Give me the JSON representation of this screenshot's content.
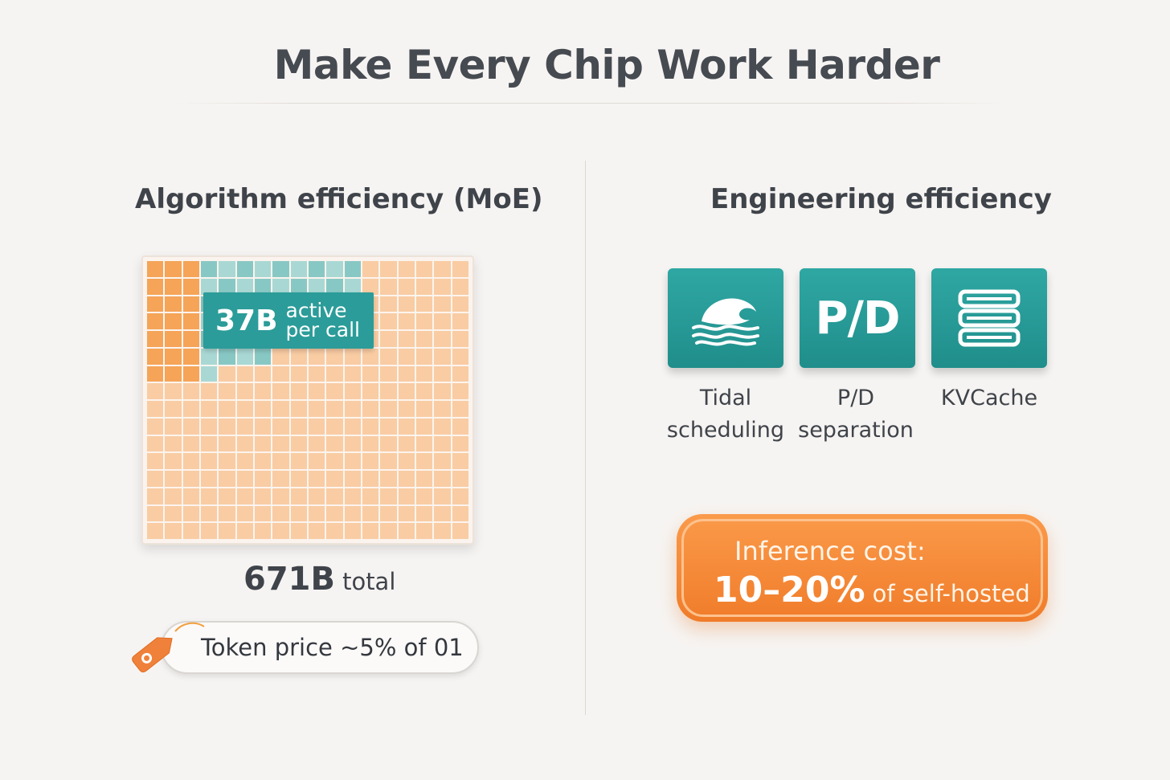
{
  "title": "Make Every Chip Work Harder",
  "left": {
    "heading": "Algorithm efficiency (MoE)",
    "active_value": "37B",
    "active_text_1": "active",
    "active_text_2": "per call",
    "total_value": "671B",
    "total_text": "total",
    "price_text": "Token price ~5% of 01"
  },
  "right": {
    "heading": "Engineering efficiency",
    "tiles": [
      {
        "icon": "wave-icon",
        "glyph": "",
        "label_1": "Tidal",
        "label_2": "scheduling"
      },
      {
        "icon": "pd-icon",
        "glyph": "P/D",
        "label_1": "P/D",
        "label_2": "separation"
      },
      {
        "icon": "server-stack-icon",
        "glyph": "",
        "label_1": "KVCache",
        "label_2": ""
      }
    ],
    "cost_line1": "Inference cost:",
    "cost_value": "10–20%",
    "cost_suffix": "of self-hosted"
  },
  "colors": {
    "teal": "#2b9c99",
    "orange": "#f28a36",
    "grid_light": "#f9cca3",
    "grid_dark": "#f5a458"
  }
}
